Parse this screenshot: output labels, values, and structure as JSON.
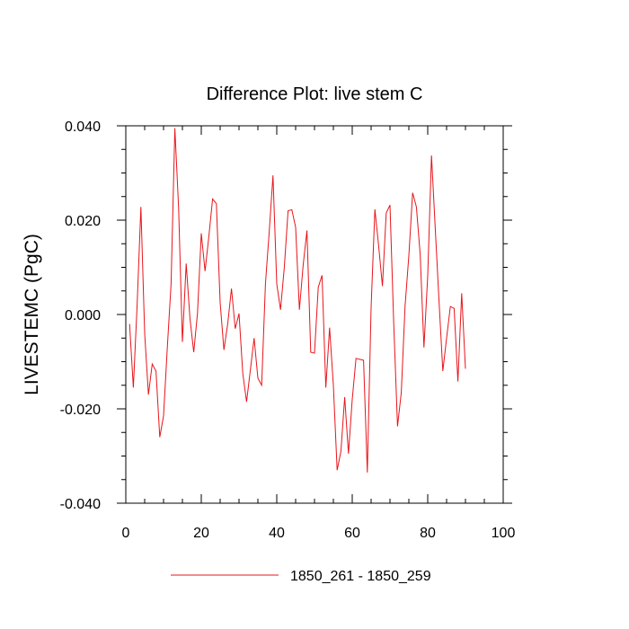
{
  "chart_data": {
    "type": "line",
    "title": "Difference Plot: live stem C",
    "xlabel": "",
    "ylabel": "LIVESTEMC  (PgC)",
    "xlim": [
      0,
      100
    ],
    "ylim": [
      -0.04,
      0.04
    ],
    "xticks": [
      0,
      20,
      40,
      60,
      80,
      100
    ],
    "xtick_labels": [
      "0",
      "20",
      "40",
      "60",
      "80",
      "100"
    ],
    "yticks": [
      -0.04,
      -0.02,
      0.0,
      0.02,
      0.04
    ],
    "ytick_labels": [
      "-0.040",
      "-0.020",
      "0.000",
      "0.020",
      "0.040"
    ],
    "grid": false,
    "legend_position": "bottom",
    "series": [
      {
        "name": "1850_261 - 1850_259",
        "color": "#e8141a",
        "x": [
          1,
          2,
          3,
          4,
          5,
          6,
          7,
          8,
          9,
          10,
          11,
          12,
          13,
          14,
          15,
          16,
          17,
          18,
          19,
          20,
          21,
          22,
          23,
          24,
          25,
          26,
          27,
          28,
          29,
          30,
          31,
          32,
          33,
          34,
          35,
          36,
          37,
          38,
          39,
          40,
          41,
          42,
          43,
          44,
          45,
          46,
          47,
          48,
          49,
          50,
          51,
          52,
          53,
          54,
          55,
          56,
          57,
          58,
          59,
          60,
          61,
          62,
          63,
          64,
          65,
          66,
          67,
          68,
          69,
          70,
          71,
          72,
          73,
          74,
          75,
          76,
          77,
          78,
          79,
          80,
          81,
          82,
          83,
          84,
          85,
          86,
          87,
          88,
          89,
          90
        ],
        "y": [
          -0.002,
          -0.0155,
          0.002,
          0.0228,
          -0.004,
          -0.017,
          -0.0105,
          -0.012,
          -0.026,
          -0.0215,
          -0.007,
          0.0065,
          0.0395,
          0.0225,
          -0.0058,
          0.0108,
          -0.0008,
          -0.008,
          0.0003,
          0.0172,
          0.0092,
          0.0165,
          0.0245,
          0.0235,
          0.0025,
          -0.0075,
          -0.002,
          0.0055,
          -0.003,
          0.0002,
          -0.0125,
          -0.0185,
          -0.0118,
          -0.005,
          -0.0135,
          -0.015,
          0.0065,
          0.0175,
          0.0295,
          0.0065,
          0.001,
          0.01,
          0.022,
          0.0222,
          0.0185,
          0.001,
          0.0105,
          0.0178,
          -0.008,
          -0.0082,
          0.0058,
          0.0083,
          -0.0155,
          -0.0028,
          -0.015,
          -0.033,
          -0.029,
          -0.0175,
          -0.0295,
          -0.018,
          -0.0093,
          -0.0095,
          -0.0097,
          -0.0335,
          0.0015,
          0.0223,
          0.0145,
          0.006,
          0.0215,
          0.0232,
          -0.002,
          -0.0237,
          -0.0165,
          0.0018,
          0.0125,
          0.0258,
          0.0228,
          0.0128,
          -0.007,
          0.0082,
          0.0337,
          0.0182,
          0.0028,
          -0.012,
          -0.005,
          0.0017,
          0.0013,
          -0.0142,
          0.0045,
          -0.0115
        ]
      }
    ]
  }
}
